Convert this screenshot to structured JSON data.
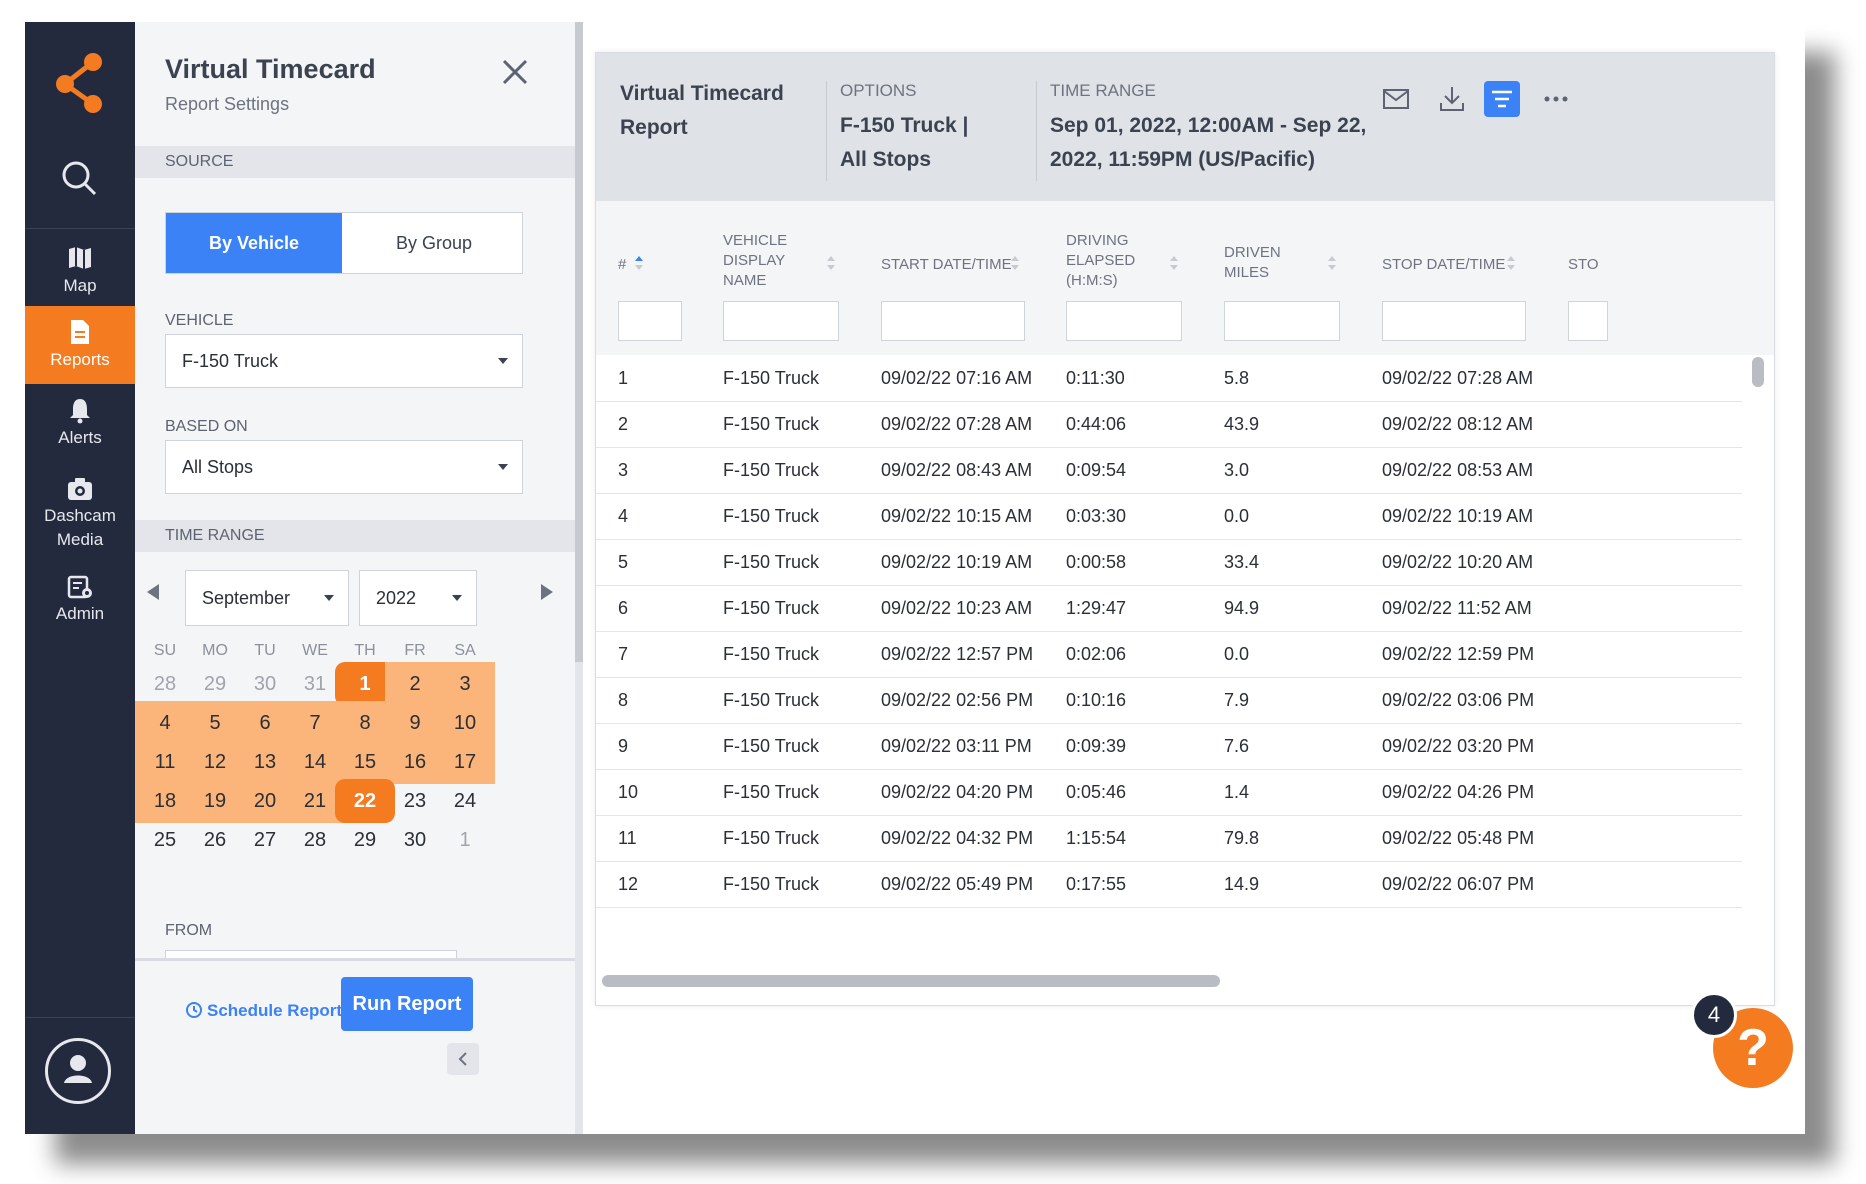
{
  "nav": {
    "items": [
      {
        "label": "Map",
        "icon": "map-icon"
      },
      {
        "label": "Reports",
        "icon": "report-icon"
      },
      {
        "label": "Alerts",
        "icon": "bell-icon"
      },
      {
        "label": "Dashcam",
        "label2": "Media",
        "icon": "camera-icon"
      },
      {
        "label": "Admin",
        "icon": "admin-icon"
      }
    ]
  },
  "panel": {
    "title": "Virtual Timecard",
    "subtitle": "Report Settings",
    "source_label": "SOURCE",
    "by_vehicle": "By Vehicle",
    "by_group": "By Group",
    "vehicle_label": "VEHICLE",
    "vehicle_value": "F-150 Truck",
    "based_on_label": "BASED ON",
    "based_on_value": "All Stops",
    "time_range_label": "TIME RANGE",
    "month": "September",
    "year": "2022",
    "dow": [
      "SU",
      "MO",
      "TU",
      "WE",
      "TH",
      "FR",
      "SA"
    ],
    "weeks": [
      [
        "28",
        "29",
        "30",
        "31",
        "1",
        "2",
        "3"
      ],
      [
        "4",
        "5",
        "6",
        "7",
        "8",
        "9",
        "10"
      ],
      [
        "11",
        "12",
        "13",
        "14",
        "15",
        "16",
        "17"
      ],
      [
        "18",
        "19",
        "20",
        "21",
        "22",
        "23",
        "24"
      ],
      [
        "25",
        "26",
        "27",
        "28",
        "29",
        "30",
        "1"
      ]
    ],
    "from_label": "FROM",
    "schedule": "Schedule Report",
    "run": "Run Report"
  },
  "report": {
    "title": "Virtual Timecard Report",
    "options_label": "OPTIONS",
    "options_value": "F-150 Truck | All Stops",
    "time_range_label": "TIME RANGE",
    "time_range_value": "Sep 01, 2022, 12:00AM - Sep 22, 2022, 11:59PM (US/Pacific)",
    "columns": [
      "#",
      "VEHICLE DISPLAY NAME",
      "START DATE/TIME",
      "DRIVING ELAPSED (H:M:S)",
      "DRIVEN MILES",
      "STOP DATE/TIME",
      "STO"
    ],
    "rows": [
      [
        "1",
        "F-150 Truck",
        "09/02/22 07:16 AM",
        "0:11:30",
        "5.8",
        "09/02/22 07:28 AM"
      ],
      [
        "2",
        "F-150 Truck",
        "09/02/22 07:28 AM",
        "0:44:06",
        "43.9",
        "09/02/22 08:12 AM"
      ],
      [
        "3",
        "F-150 Truck",
        "09/02/22 08:43 AM",
        "0:09:54",
        "3.0",
        "09/02/22 08:53 AM"
      ],
      [
        "4",
        "F-150 Truck",
        "09/02/22 10:15 AM",
        "0:03:30",
        "0.0",
        "09/02/22 10:19 AM"
      ],
      [
        "5",
        "F-150 Truck",
        "09/02/22 10:19 AM",
        "0:00:58",
        "33.4",
        "09/02/22 10:20 AM"
      ],
      [
        "6",
        "F-150 Truck",
        "09/02/22 10:23 AM",
        "1:29:47",
        "94.9",
        "09/02/22 11:52 AM"
      ],
      [
        "7",
        "F-150 Truck",
        "09/02/22 12:57 PM",
        "0:02:06",
        "0.0",
        "09/02/22 12:59 PM"
      ],
      [
        "8",
        "F-150 Truck",
        "09/02/22 02:56 PM",
        "0:10:16",
        "7.9",
        "09/02/22 03:06 PM"
      ],
      [
        "9",
        "F-150 Truck",
        "09/02/22 03:11 PM",
        "0:09:39",
        "7.6",
        "09/02/22 03:20 PM"
      ],
      [
        "10",
        "F-150 Truck",
        "09/02/22 04:20 PM",
        "0:05:46",
        "1.4",
        "09/02/22 04:26 PM"
      ],
      [
        "11",
        "F-150 Truck",
        "09/02/22 04:32 PM",
        "1:15:54",
        "79.8",
        "09/02/22 05:48 PM"
      ],
      [
        "12",
        "F-150 Truck",
        "09/02/22 05:49 PM",
        "0:17:55",
        "14.9",
        "09/02/22 06:07 PM"
      ]
    ]
  },
  "help": {
    "badge": "4",
    "label": "?"
  },
  "colors": {
    "nav_bg": "#232a3e",
    "accent_orange": "#f47b20",
    "range_orange": "#fbb47a",
    "primary_blue": "#3b82f6"
  }
}
